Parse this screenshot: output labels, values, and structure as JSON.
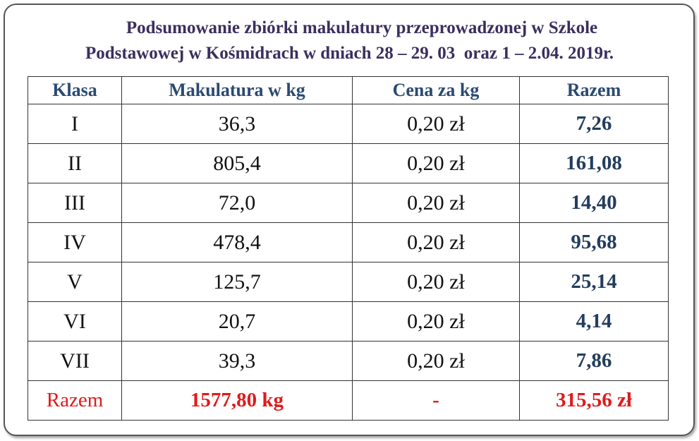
{
  "header": {
    "title": [
      "Podsumowanie zbiórki makulatury przeprowadzonej w Szkole",
      "Podstawowej w Kośmidrach w dniach 28 – 29. 03  oraz 1 – 2.04. 2019r."
    ]
  },
  "table": {
    "columns": [
      "Klasa",
      "Makulatura w kg",
      "Cena za kg",
      "Razem"
    ],
    "rows": [
      [
        "I",
        "36,3",
        "0,20 zł",
        "7,26"
      ],
      [
        "II",
        "805,4",
        "0,20 zł",
        "161,08"
      ],
      [
        "III",
        "72,0",
        "0,20 zł",
        "14,40"
      ],
      [
        "IV",
        "478,4",
        "0,20 zł",
        "95,68"
      ],
      [
        "V",
        "125,7",
        "0,20 zł",
        "25,14"
      ],
      [
        "VI",
        "20,7",
        "0,20 zł",
        "4,14"
      ],
      [
        "VII",
        "39,3",
        "0,20 zł",
        "7,86"
      ]
    ],
    "total": [
      "Razem",
      "1577,80 kg",
      "-",
      "315,56 zł"
    ]
  }
}
